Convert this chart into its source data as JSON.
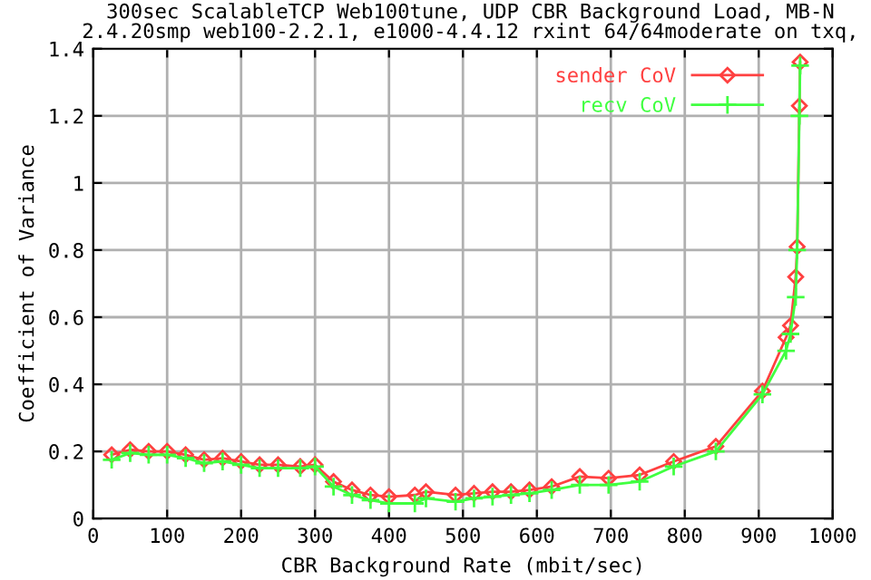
{
  "chart_data": {
    "type": "line",
    "title": "300sec ScalableTCP Web100tune, UDP CBR Background Load, MB-N\n2.4.20smp web100-2.2.1, e1000-4.4.12 rxint 64/64moderate on txq,",
    "xlabel": "CBR Background Rate (mbit/sec)",
    "ylabel": "Coefficient of Variance",
    "xlim": [
      0,
      1000
    ],
    "xticks": [
      0,
      100,
      200,
      300,
      400,
      500,
      600,
      700,
      800,
      900,
      1000
    ],
    "ylim": [
      0,
      1.4
    ],
    "yticks": [
      0,
      0.2,
      0.4,
      0.6,
      0.8,
      1,
      1.2,
      1.4
    ],
    "grid": true,
    "legend": "top right",
    "line_style": "solid",
    "series": [
      {
        "name": "sender CoV",
        "color": "#ff4040",
        "marker": "diamond",
        "x": [
          25,
          50,
          75,
          100,
          125,
          150,
          175,
          200,
          225,
          250,
          280,
          300,
          325,
          350,
          375,
          400,
          435,
          450,
          490,
          515,
          540,
          565,
          590,
          620,
          658,
          697,
          739,
          785,
          842,
          905,
          937,
          943,
          950,
          952,
          955,
          956
        ],
        "values": [
          0.19,
          0.205,
          0.2,
          0.2,
          0.19,
          0.175,
          0.18,
          0.17,
          0.16,
          0.16,
          0.155,
          0.16,
          0.11,
          0.085,
          0.07,
          0.065,
          0.07,
          0.08,
          0.07,
          0.075,
          0.08,
          0.08,
          0.085,
          0.095,
          0.125,
          0.12,
          0.13,
          0.17,
          0.215,
          0.38,
          0.54,
          0.575,
          0.72,
          0.81,
          1.23,
          1.36
        ]
      },
      {
        "name": "recv CoV",
        "color": "#40ff40",
        "marker": "cross",
        "x": [
          25,
          50,
          75,
          100,
          125,
          150,
          175,
          200,
          225,
          250,
          280,
          300,
          325,
          350,
          375,
          400,
          435,
          450,
          490,
          515,
          540,
          565,
          590,
          620,
          658,
          697,
          739,
          785,
          842,
          905,
          937,
          943,
          950,
          952,
          955,
          956
        ],
        "values": [
          0.175,
          0.195,
          0.19,
          0.19,
          0.18,
          0.165,
          0.17,
          0.16,
          0.15,
          0.15,
          0.15,
          0.155,
          0.095,
          0.07,
          0.055,
          0.045,
          0.045,
          0.06,
          0.05,
          0.06,
          0.065,
          0.07,
          0.075,
          0.085,
          0.1,
          0.1,
          0.11,
          0.155,
          0.2,
          0.37,
          0.5,
          0.55,
          0.66,
          0.8,
          1.2,
          1.35
        ]
      }
    ]
  }
}
